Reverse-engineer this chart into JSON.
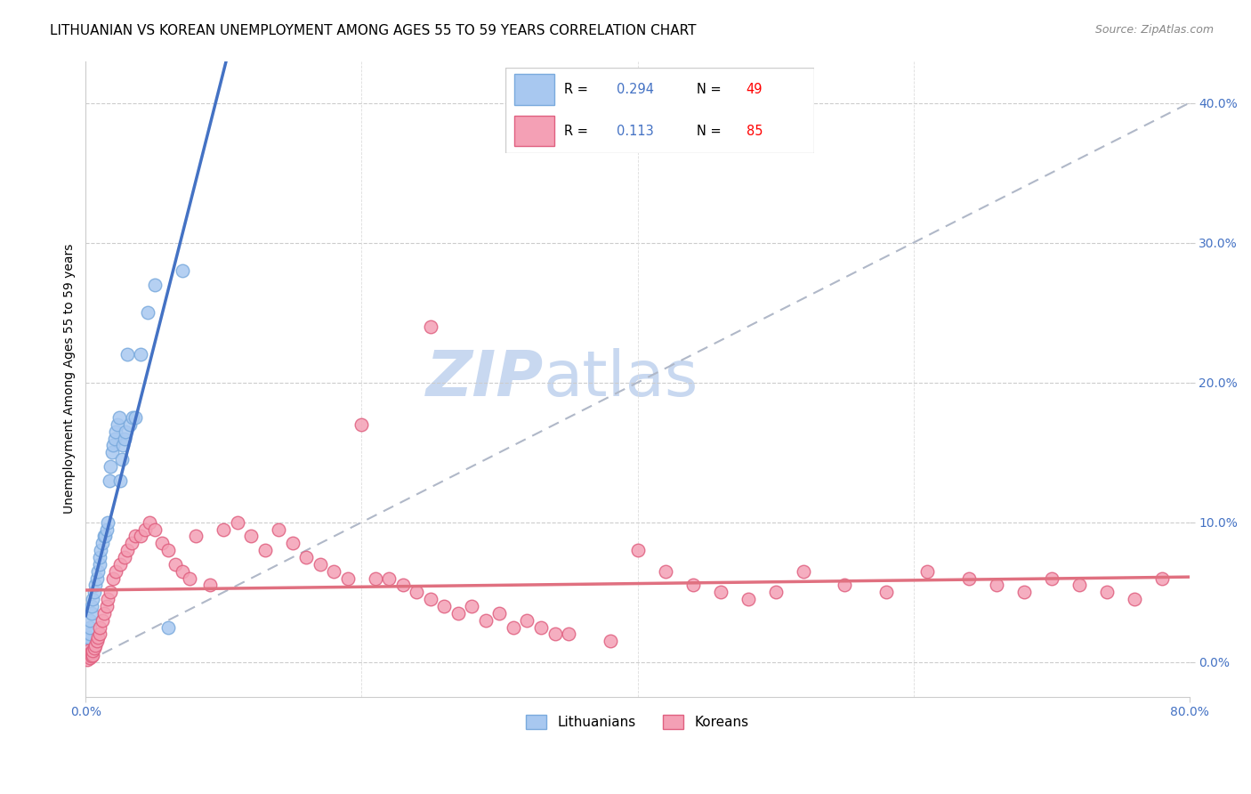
{
  "title": "LITHUANIAN VS KOREAN UNEMPLOYMENT AMONG AGES 55 TO 59 YEARS CORRELATION CHART",
  "source": "Source: ZipAtlas.com",
  "ylabel": "Unemployment Among Ages 55 to 59 years",
  "ytick_labels": [
    "0.0%",
    "10.0%",
    "20.0%",
    "30.0%",
    "40.0%"
  ],
  "ytick_values": [
    0.0,
    0.1,
    0.2,
    0.3,
    0.4
  ],
  "xmin": 0.0,
  "xmax": 0.8,
  "ymin": -0.025,
  "ymax": 0.43,
  "blue_line_color": "#4472c4",
  "pink_line_color": "#e07080",
  "gray_dash_color": "#b0b8c8",
  "scatter_blue_color": "#a8c8f0",
  "scatter_pink_color": "#f4a0b5",
  "scatter_blue_edge": "#7aaadd",
  "scatter_pink_edge": "#e06080",
  "title_fontsize": 11,
  "axis_label_fontsize": 10,
  "tick_fontsize": 10,
  "watermark_zip": "ZIP",
  "watermark_atlas": "atlas",
  "watermark_color": "#c8d8f0",
  "watermark_fontsize": 52,
  "R_lith": 0.294,
  "N_lith": 49,
  "R_kor": 0.113,
  "N_kor": 85,
  "lith_x": [
    0.001,
    0.001,
    0.001,
    0.001,
    0.001,
    0.002,
    0.002,
    0.002,
    0.002,
    0.003,
    0.003,
    0.003,
    0.004,
    0.004,
    0.005,
    0.006,
    0.007,
    0.008,
    0.009,
    0.01,
    0.01,
    0.011,
    0.012,
    0.013,
    0.014,
    0.015,
    0.016,
    0.017,
    0.018,
    0.019,
    0.02,
    0.021,
    0.022,
    0.023,
    0.024,
    0.025,
    0.026,
    0.027,
    0.028,
    0.029,
    0.03,
    0.032,
    0.034,
    0.036,
    0.04,
    0.045,
    0.05,
    0.06,
    0.07
  ],
  "lith_y": [
    0.005,
    0.008,
    0.01,
    0.012,
    0.015,
    0.005,
    0.008,
    0.012,
    0.018,
    0.02,
    0.025,
    0.03,
    0.035,
    0.04,
    0.045,
    0.05,
    0.055,
    0.06,
    0.065,
    0.07,
    0.075,
    0.08,
    0.085,
    0.09,
    0.09,
    0.095,
    0.1,
    0.13,
    0.14,
    0.15,
    0.155,
    0.16,
    0.165,
    0.17,
    0.175,
    0.13,
    0.145,
    0.155,
    0.16,
    0.165,
    0.22,
    0.17,
    0.175,
    0.175,
    0.22,
    0.25,
    0.27,
    0.025,
    0.28
  ],
  "kor_x": [
    0.001,
    0.001,
    0.002,
    0.002,
    0.003,
    0.003,
    0.004,
    0.004,
    0.005,
    0.005,
    0.006,
    0.007,
    0.008,
    0.009,
    0.01,
    0.01,
    0.012,
    0.013,
    0.015,
    0.016,
    0.018,
    0.02,
    0.022,
    0.025,
    0.028,
    0.03,
    0.033,
    0.036,
    0.04,
    0.043,
    0.046,
    0.05,
    0.055,
    0.06,
    0.065,
    0.07,
    0.075,
    0.08,
    0.09,
    0.1,
    0.11,
    0.12,
    0.13,
    0.14,
    0.15,
    0.16,
    0.17,
    0.18,
    0.19,
    0.2,
    0.21,
    0.22,
    0.23,
    0.24,
    0.25,
    0.26,
    0.27,
    0.28,
    0.29,
    0.3,
    0.31,
    0.32,
    0.33,
    0.34,
    0.35,
    0.38,
    0.4,
    0.42,
    0.44,
    0.46,
    0.48,
    0.5,
    0.52,
    0.55,
    0.58,
    0.61,
    0.64,
    0.66,
    0.68,
    0.7,
    0.72,
    0.74,
    0.76,
    0.78,
    0.25
  ],
  "kor_y": [
    0.002,
    0.005,
    0.005,
    0.008,
    0.003,
    0.006,
    0.004,
    0.007,
    0.005,
    0.008,
    0.01,
    0.012,
    0.015,
    0.018,
    0.02,
    0.025,
    0.03,
    0.035,
    0.04,
    0.045,
    0.05,
    0.06,
    0.065,
    0.07,
    0.075,
    0.08,
    0.085,
    0.09,
    0.09,
    0.095,
    0.1,
    0.095,
    0.085,
    0.08,
    0.07,
    0.065,
    0.06,
    0.09,
    0.055,
    0.095,
    0.1,
    0.09,
    0.08,
    0.095,
    0.085,
    0.075,
    0.07,
    0.065,
    0.06,
    0.17,
    0.06,
    0.06,
    0.055,
    0.05,
    0.045,
    0.04,
    0.035,
    0.04,
    0.03,
    0.035,
    0.025,
    0.03,
    0.025,
    0.02,
    0.02,
    0.015,
    0.08,
    0.065,
    0.055,
    0.05,
    0.045,
    0.05,
    0.065,
    0.055,
    0.05,
    0.065,
    0.06,
    0.055,
    0.05,
    0.06,
    0.055,
    0.05,
    0.045,
    0.06,
    0.24
  ]
}
